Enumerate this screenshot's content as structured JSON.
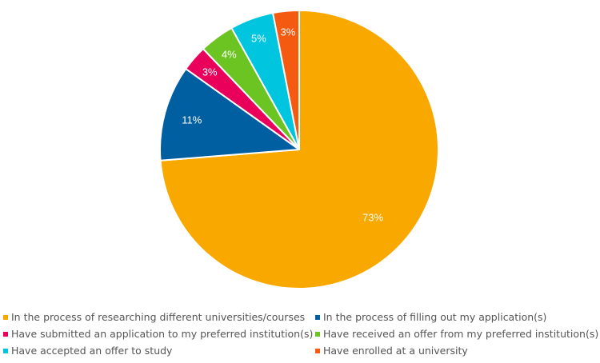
{
  "chart_data": {
    "type": "pie",
    "title": "",
    "start_angle_deg": 0,
    "direction": "clockwise",
    "legend_position": "bottom",
    "slices": [
      {
        "label": "In the process of researching different universities/courses",
        "value": 73,
        "display": "73%",
        "color": "#F9A800"
      },
      {
        "label": "In the process of filling out my application(s)",
        "value": 11,
        "display": "11%",
        "color": "#005FA1"
      },
      {
        "label": "Have submitted an application to my preferred institution(s)",
        "value": 3,
        "display": "3%",
        "color": "#E8005A"
      },
      {
        "label": "Have received an offer from my preferred institution(s)",
        "value": 4,
        "display": "4%",
        "color": "#6CC422"
      },
      {
        "label": "Have accepted an offer to study",
        "value": 5,
        "display": "5%",
        "color": "#00C5DE"
      },
      {
        "label": "Have enrolled at a university",
        "value": 3,
        "display": "3%",
        "color": "#F55B10"
      }
    ]
  }
}
